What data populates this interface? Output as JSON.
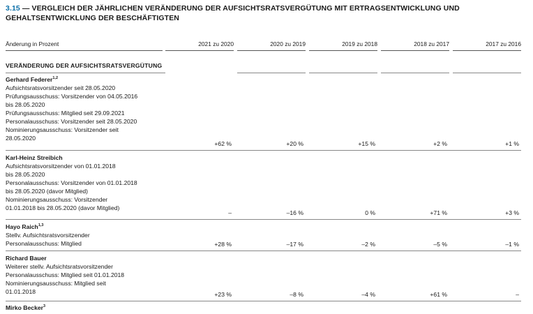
{
  "table": {
    "title_number": "3.15",
    "title_text": " — VERGLEICH DER JÄHRLICHEN VERÄNDERUNG DER AUFSICHTSRATSVERGÜTUNG MIT ERTRAGSENTWICKLUNG UND GEHALTSENTWICKLUNG DER BESCHÄFTIGTEN",
    "header_label": "Änderung in Prozent",
    "columns": [
      "2021 zu 2020",
      "2020 zu 2019",
      "2019 zu 2018",
      "2018 zu 2017",
      "2017 zu 2016"
    ],
    "section_title": "VERÄNDERUNG DER AUFSICHTSRATSVERGÜTUNG",
    "rows": [
      {
        "name": "Gerhard Federer",
        "footnote": "1,2",
        "lines": [
          "Aufsichtsratsvorsitzender seit 28.05.2020",
          "Prüfungsausschuss: Vorsitzender von 04.05.2016",
          "bis 28.05.2020",
          "Prüfungsausschuss: Mitglied seit 29.09.2021",
          "Personalausschuss: Vorsitzender seit 28.05.2020",
          "Nominierungsausschuss: Vorsitzender seit",
          "28.05.2020"
        ],
        "values": [
          "+62 %",
          "+20 %",
          "+15 %",
          "+2 %",
          "+1 %"
        ]
      },
      {
        "name": "Karl-Heinz Streibich",
        "footnote": "",
        "lines": [
          "Aufsichtsratsvorsitzender von 01.01.2018",
          "bis 28.05.2020",
          "Personalausschuss: Vorsitzender von 01.01.2018",
          "bis 28.05.2020 (davor Mitglied)",
          "Nominierungsausschuss: Vorsitzender",
          "01.01.2018 bis 28.05.2020 (davor Mitglied)"
        ],
        "values": [
          "–",
          "–16 %",
          "0 %",
          "+71 %",
          "+3 %"
        ]
      },
      {
        "name": "Hayo Raich",
        "footnote": "1,3",
        "lines": [
          "Stellv. Aufsichtsratsvorsitzender",
          "Personalausschuss: Mitglied"
        ],
        "values": [
          "+28 %",
          "–17 %",
          "–2 %",
          "–5 %",
          "–1 %"
        ]
      },
      {
        "name": "Richard Bauer",
        "footnote": "",
        "lines": [
          "Weiterer stellv. Aufsichtsratsvorsitzender",
          "Personalausschuss: Mitglied seit 01.01.2018",
          "Nominierungsausschuss: Mitglied seit",
          "01.01.2018"
        ],
        "values": [
          "+23 %",
          "–8 %",
          "–4 %",
          "+61 %",
          "–"
        ]
      },
      {
        "name": "Mirko Becker",
        "footnote": "3",
        "lines": [],
        "values": []
      }
    ]
  }
}
